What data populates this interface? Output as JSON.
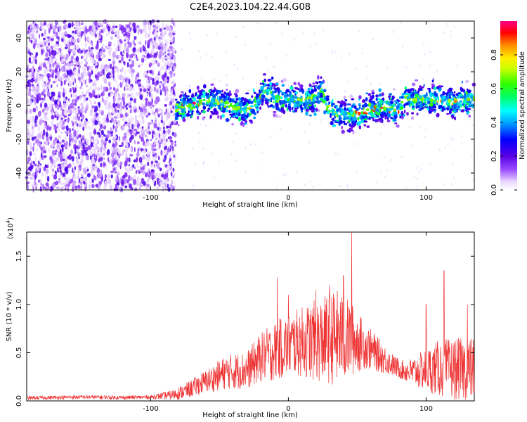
{
  "title": "C2E4.2023.104.22.44.G08",
  "chart_data": [
    {
      "type": "heatmap",
      "xlabel": "Height of straight line (km)",
      "ylabel": "Frequency (Hz)",
      "xlim": [
        -190,
        135
      ],
      "ylim": [
        -50,
        50
      ],
      "x_ticks": [
        -100,
        0,
        100
      ],
      "y_ticks": [
        -40,
        -20,
        0,
        20,
        40
      ],
      "colorbar": {
        "label": "Normalized spectral amplitude",
        "range": [
          0,
          1
        ],
        "ticks": [
          "0.0",
          "0.2",
          "0.4",
          "0.6",
          "0.8"
        ]
      },
      "ridge": {
        "x": [
          -82,
          -70,
          -60,
          -50,
          -40,
          -30,
          -22,
          -18,
          -10,
          0,
          10,
          20,
          24,
          28,
          35,
          45,
          55,
          60,
          70,
          80,
          85,
          90,
          100,
          110,
          120,
          132
        ],
        "y": [
          -2,
          0,
          3,
          2,
          -1,
          -3,
          2,
          10,
          5,
          4,
          3,
          5,
          10,
          0,
          -5,
          -6,
          -4,
          -2,
          -1,
          -3,
          5,
          3,
          4,
          3,
          2,
          4
        ]
      }
    },
    {
      "type": "line",
      "xlabel": "Height of straight line (km)",
      "ylabel": "SNR (10 * v/v)",
      "exponent_label": "(x10",
      "exponent_power": "4",
      "exponent_close": ")",
      "xlim": [
        -190,
        135
      ],
      "ylim": [
        0,
        1.75
      ],
      "x_ticks": [
        -100,
        0,
        100
      ],
      "y_ticks": [
        "0.0",
        "0.5",
        "1.0",
        "1.5"
      ],
      "series_color": "#ee3333",
      "envelope": {
        "x": [
          -190,
          -150,
          -120,
          -100,
          -85,
          -75,
          -60,
          -45,
          -30,
          -20,
          -12,
          -5,
          5,
          15,
          25,
          35,
          45,
          55,
          65,
          75,
          82,
          90,
          100,
          110,
          120,
          135
        ],
        "mean": [
          0.03,
          0.04,
          0.035,
          0.04,
          0.06,
          0.1,
          0.2,
          0.3,
          0.32,
          0.45,
          0.5,
          0.55,
          0.6,
          0.62,
          0.63,
          0.66,
          0.64,
          0.58,
          0.48,
          0.38,
          0.32,
          0.3,
          0.32,
          0.34,
          0.33,
          0.33
        ],
        "amp": [
          0.02,
          0.02,
          0.02,
          0.02,
          0.05,
          0.08,
          0.12,
          0.18,
          0.2,
          0.26,
          0.3,
          0.32,
          0.34,
          0.4,
          0.45,
          0.5,
          0.4,
          0.25,
          0.18,
          0.12,
          0.1,
          0.15,
          0.22,
          0.3,
          0.32,
          0.33
        ]
      },
      "spikes": [
        {
          "x": -8,
          "y": 1.28
        },
        {
          "x": 0,
          "y": 1.1
        },
        {
          "x": 20,
          "y": 1.15
        },
        {
          "x": 30,
          "y": 1.2
        },
        {
          "x": 40,
          "y": 1.3
        },
        {
          "x": 46,
          "y": 1.75
        },
        {
          "x": 100,
          "y": 1.0
        },
        {
          "x": 113,
          "y": 1.35
        },
        {
          "x": 130,
          "y": 1.0
        }
      ]
    }
  ]
}
